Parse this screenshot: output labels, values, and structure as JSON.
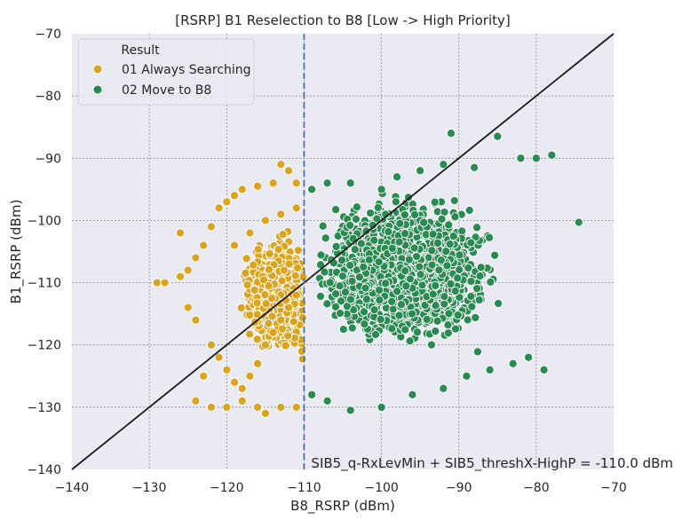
{
  "chart_data": {
    "type": "scatter",
    "title": "[RSRP] B1 Reselection to B8 [Low -> High Priority]",
    "xlabel": "B8_RSRP (dBm)",
    "ylabel": "B1_RSRP (dBm)",
    "xlim": [
      -140,
      -70
    ],
    "ylim": [
      -140,
      -70
    ],
    "xticks": [
      -140,
      -130,
      -120,
      -110,
      -100,
      -90,
      -80,
      -70
    ],
    "yticks": [
      -140,
      -130,
      -120,
      -110,
      -100,
      -90,
      -80,
      -70
    ],
    "xtick_labels": [
      "−140",
      "−130",
      "−120",
      "−110",
      "−100",
      "−90",
      "−80",
      "−70"
    ],
    "ytick_labels": [
      "−140",
      "−130",
      "−120",
      "−110",
      "−100",
      "−90",
      "−80",
      "−70"
    ],
    "grid": true,
    "legend": {
      "title": "Result",
      "placement": "top-left"
    },
    "series": [
      {
        "name": "01 Always Searching",
        "color": "#d9a521",
        "x_range": [
          -129.5,
          -110.1
        ],
        "y_range": [
          -131,
          -91
        ],
        "points": [
          [
            -129,
            -110
          ],
          [
            -128,
            -110
          ],
          [
            -126,
            -109
          ],
          [
            -125,
            -108
          ],
          [
            -124,
            -106
          ],
          [
            -123,
            -104
          ],
          [
            -122,
            -101
          ],
          [
            -121,
            -98
          ],
          [
            -120,
            -97
          ],
          [
            -119,
            -96
          ],
          [
            -118,
            -95
          ],
          [
            -116,
            -94.5
          ],
          [
            -114,
            -94
          ],
          [
            -113,
            -91
          ],
          [
            -112,
            -92
          ],
          [
            -111,
            -94
          ],
          [
            -123,
            -125
          ],
          [
            -124,
            -129
          ],
          [
            -122,
            -130
          ],
          [
            -120,
            -130
          ],
          [
            -118,
            -129
          ],
          [
            -116,
            -130
          ],
          [
            -115,
            -131
          ],
          [
            -113,
            -130
          ],
          [
            -111,
            -130
          ],
          [
            -126,
            -102
          ],
          [
            -125,
            -114
          ],
          [
            -124,
            -116
          ],
          [
            -122,
            -120
          ],
          [
            -121,
            -122
          ],
          [
            -120,
            -124
          ],
          [
            -119,
            -126
          ],
          [
            -118,
            -127
          ],
          [
            -117,
            -125
          ],
          [
            -116,
            -123
          ],
          [
            -115,
            -120
          ],
          [
            -114,
            -118
          ],
          [
            -113,
            -116
          ],
          [
            -112,
            -114
          ],
          [
            -111,
            -112
          ],
          [
            -119,
            -104
          ],
          [
            -117,
            -102
          ],
          [
            -115,
            -100
          ],
          [
            -113,
            -99
          ],
          [
            -111,
            -98
          ]
        ]
      },
      {
        "name": "02 Move to B8",
        "color": "#2a8a52",
        "x_range": [
          -110,
          -74.5
        ],
        "y_range": [
          -130.5,
          -86
        ],
        "points": [
          [
            -91,
            -86
          ],
          [
            -85,
            -86.5
          ],
          [
            -78,
            -89.5
          ],
          [
            -80,
            -90
          ],
          [
            -82,
            -90
          ],
          [
            -74.5,
            -100.3
          ],
          [
            -79,
            -124
          ],
          [
            -81,
            -122
          ],
          [
            -83,
            -123
          ],
          [
            -86,
            -124
          ],
          [
            -89,
            -125
          ],
          [
            -92,
            -127
          ],
          [
            -96,
            -128
          ],
          [
            -100,
            -130
          ],
          [
            -104,
            -130.5
          ],
          [
            -107,
            -129
          ],
          [
            -109,
            -128
          ],
          [
            -98,
            -93
          ],
          [
            -95,
            -92
          ],
          [
            -92,
            -91
          ],
          [
            -88,
            -91.5
          ],
          [
            -100,
            -95
          ],
          [
            -104,
            -94
          ],
          [
            -107,
            -94
          ],
          [
            -109,
            -95
          ]
        ]
      }
    ],
    "annotations": {
      "vline": {
        "x": -110,
        "style": "dashed",
        "color": "#4a72b0"
      },
      "diagonal": {
        "from": [
          -140,
          -140
        ],
        "to": [
          -70,
          -70
        ],
        "color": "#1a1a1a"
      },
      "threshold_label": "SIB5_q-RxLevMin + SIB5_threshX-HighP = -110.0 dBm"
    },
    "colors": {
      "plot_background": "#eaeaf2",
      "grid": "#808080"
    }
  }
}
